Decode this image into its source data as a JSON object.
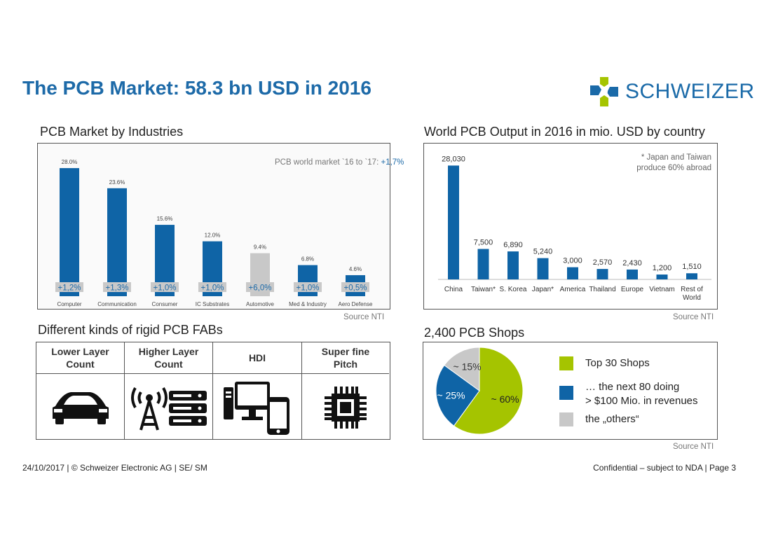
{
  "header": {
    "title": "The PCB Market: 58.3 bn USD in 2016",
    "logo_text": "SCHWEIZER"
  },
  "colors": {
    "blue": "#0f64a6",
    "gray": "#c8c8c8",
    "green": "#a5c400",
    "title": "#1d6aa8"
  },
  "industries_section": {
    "title": "PCB Market by Industries",
    "annotation_prefix": "PCB world market `16 to `17: ",
    "annotation_value": "+1,7%",
    "source": "Source NTI"
  },
  "country_section": {
    "title": "World PCB Output in 2016 in  mio. USD by country",
    "note_line1": "* Japan and Taiwan",
    "note_line2": "produce 60% abroad",
    "source": "Source NTI"
  },
  "fab_section": {
    "title": "Different kinds of rigid PCB FABs",
    "columns": [
      {
        "line1": "Lower Layer",
        "line2": "Count",
        "icon": "car-icon"
      },
      {
        "line1": "Higher Layer",
        "line2": "Count",
        "icon": "antenna-server-icon"
      },
      {
        "line1": "HDI",
        "line2": "",
        "icon": "computer-phone-icon"
      },
      {
        "line1": "Super fine",
        "line2": "Pitch",
        "icon": "chip-icon"
      }
    ]
  },
  "shops_section": {
    "title": "2,400 PCB Shops",
    "legend": [
      {
        "line1": "Top 30 Shops",
        "line2": ""
      },
      {
        "line1": "… the next 80 doing",
        "line2": "> $100 Mio. in revenues"
      },
      {
        "line1": "the „others“",
        "line2": ""
      }
    ],
    "source": "Source NTI"
  },
  "footer": {
    "left": "24/10/2017 | © Schweizer Electronic AG | SE/ SM",
    "right": "Confidential – subject to NDA | Page 3"
  },
  "chart_data": [
    {
      "type": "bar",
      "title": "PCB Market by Industries",
      "categories": [
        "Computer",
        "Communication",
        "Consumer",
        "IC Substrates",
        "Automotive",
        "Med & Industry",
        "Aero Defense"
      ],
      "values": [
        28.0,
        23.6,
        15.6,
        12.0,
        9.4,
        6.8,
        4.6
      ],
      "value_labels": [
        "28.0%",
        "23.6%",
        "15.6%",
        "12.0%",
        "9.4%",
        "6.8%",
        "4.6%"
      ],
      "growth_labels": [
        "+1,2%",
        "+1,3%",
        "+1,0%",
        "+1,0%",
        "+6,0%",
        "+1,0%",
        "+0,5%"
      ],
      "highlight_index": 4,
      "unit": "%",
      "ylim": [
        0,
        30
      ]
    },
    {
      "type": "bar",
      "title": "World PCB Output in 2016 in  mio. USD by country",
      "categories": [
        [
          "China"
        ],
        [
          "Taiwan*"
        ],
        [
          "S. Korea"
        ],
        [
          "Japan*"
        ],
        [
          "America"
        ],
        [
          "Thailand"
        ],
        [
          "Europe"
        ],
        [
          "Vietnam"
        ],
        [
          "Rest of",
          "World"
        ]
      ],
      "values": [
        28030,
        7500,
        6890,
        5240,
        3000,
        2570,
        2430,
        1200,
        1510
      ],
      "value_labels": [
        "28,030",
        "7,500",
        "6,890",
        "5,240",
        "3,000",
        "2,570",
        "2,430",
        "1,200",
        "1,510"
      ],
      "unit": "mio. USD",
      "ylim": [
        0,
        30000
      ]
    },
    {
      "type": "pie",
      "title": "2,400 PCB Shops",
      "labels": [
        "Top 30 Shops",
        "… the next 80 doing > $100 Mio. in revenues",
        "the „others“"
      ],
      "values": [
        60,
        25,
        15
      ],
      "value_labels": [
        "~ 60%",
        "~ 25%",
        "~ 15%"
      ],
      "colors": [
        "#a5c400",
        "#0f64a6",
        "#c8c8c8"
      ]
    }
  ]
}
